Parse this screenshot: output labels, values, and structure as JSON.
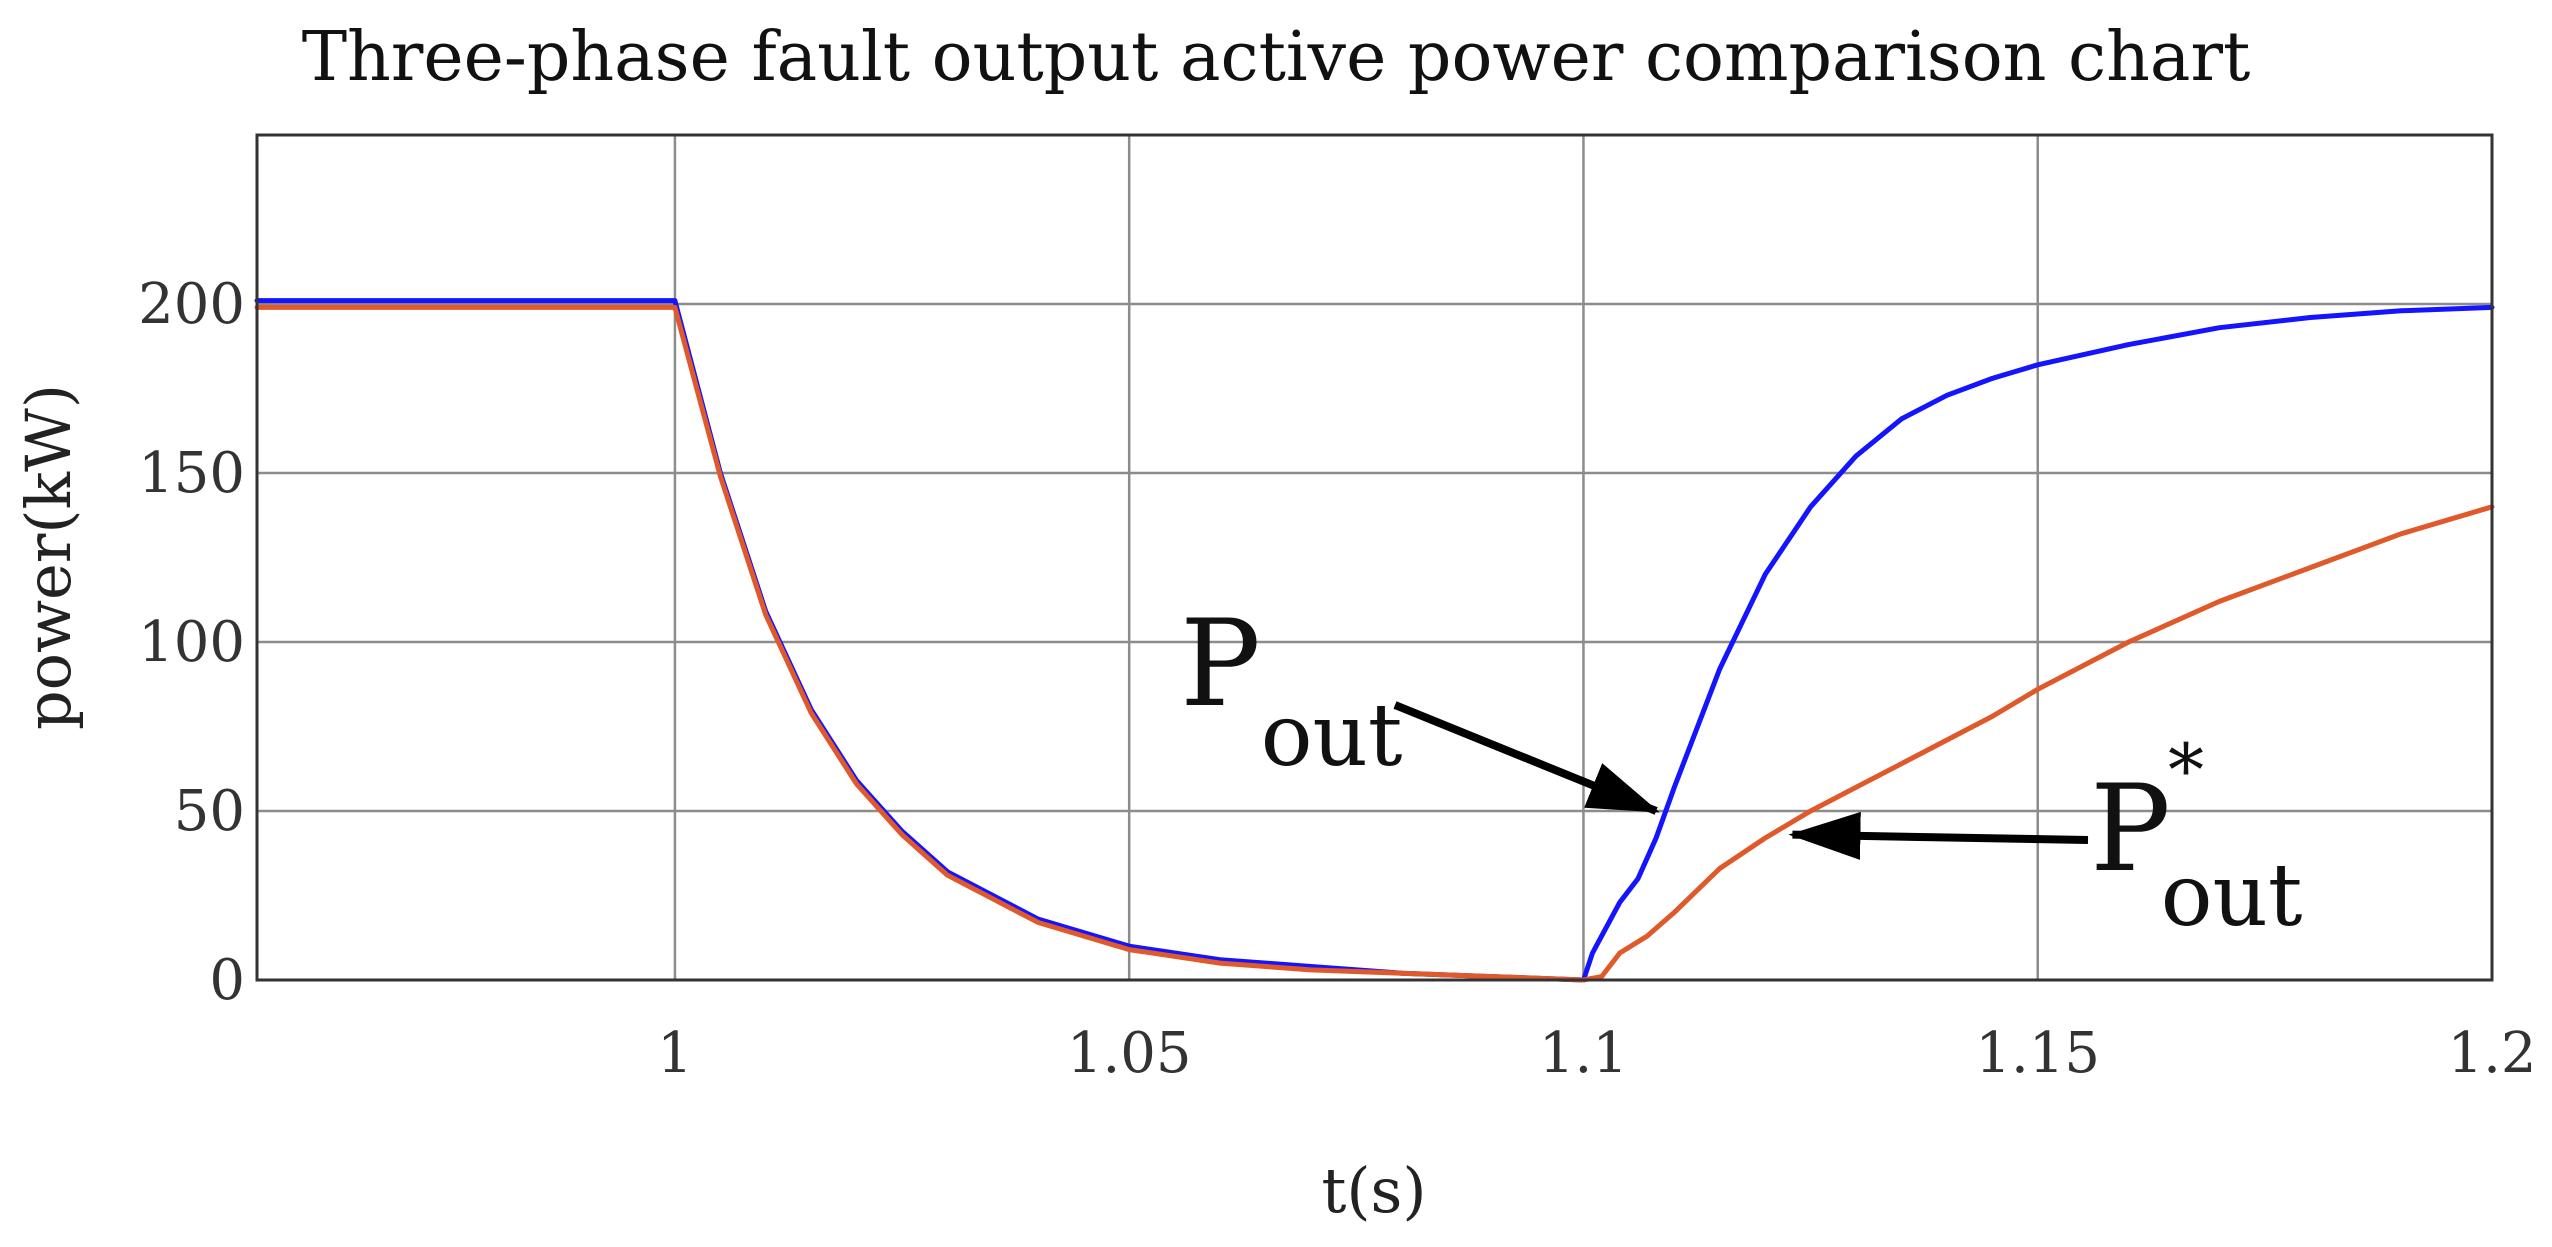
{
  "chart_data": {
    "type": "line",
    "title": "Three-phase fault output active power comparison chart",
    "xlabel": "t(s)",
    "ylabel": "power(kW)",
    "xlim": [
      0.954,
      1.2
    ],
    "ylim": [
      0,
      250
    ],
    "x_ticks": [
      1,
      1.05,
      1.1,
      1.15,
      1.2
    ],
    "x_tick_labels": [
      "1",
      "1.05",
      "1.1",
      "1.15",
      "1.2"
    ],
    "y_ticks": [
      0,
      50,
      100,
      150,
      200
    ],
    "y_tick_labels": [
      "0",
      "50",
      "100",
      "150",
      "200"
    ],
    "grid": true,
    "legend": "none",
    "series": [
      {
        "color": "#1414ff",
        "x": [
          0.954,
          1.0,
          1.005,
          1.01,
          1.015,
          1.02,
          1.025,
          1.03,
          1.04,
          1.05,
          1.06,
          1.07,
          1.08,
          1.09,
          1.1,
          1.1,
          1.101,
          1.102,
          1.104,
          1.106,
          1.108,
          1.11,
          1.115,
          1.12,
          1.125,
          1.13,
          1.135,
          1.14,
          1.145,
          1.15,
          1.16,
          1.17,
          1.18,
          1.19,
          1.2
        ],
        "y": [
          201,
          201,
          150,
          109,
          80,
          59,
          44,
          32,
          18,
          10,
          6,
          4,
          2,
          1,
          0,
          0,
          8,
          13,
          23,
          30,
          42,
          57,
          92,
          120,
          140,
          155,
          166,
          173,
          178,
          182,
          188,
          193,
          196,
          198,
          199
        ]
      },
      {
        "color": "#e0592a",
        "x": [
          0.954,
          1.0,
          1.005,
          1.01,
          1.015,
          1.02,
          1.025,
          1.03,
          1.04,
          1.05,
          1.06,
          1.07,
          1.08,
          1.09,
          1.1,
          1.102,
          1.104,
          1.107,
          1.11,
          1.115,
          1.12,
          1.125,
          1.13,
          1.135,
          1.14,
          1.145,
          1.15,
          1.16,
          1.17,
          1.18,
          1.19,
          1.2
        ],
        "y": [
          199,
          199,
          149,
          108,
          79,
          58,
          43,
          31,
          17,
          9,
          5,
          3,
          2,
          1,
          0,
          1,
          8,
          13,
          20,
          33,
          42,
          50,
          57,
          64,
          71,
          78,
          86,
          100,
          112,
          122,
          132,
          140
        ]
      }
    ],
    "annotations": [
      {
        "label": "P",
        "subscript": "out",
        "superscript": "",
        "arrow_to": {
          "x": 1.108,
          "y": 50
        }
      },
      {
        "label": "P",
        "subscript": "out",
        "superscript": "*",
        "arrow_to": {
          "x": 1.123,
          "y": 43
        }
      }
    ]
  }
}
